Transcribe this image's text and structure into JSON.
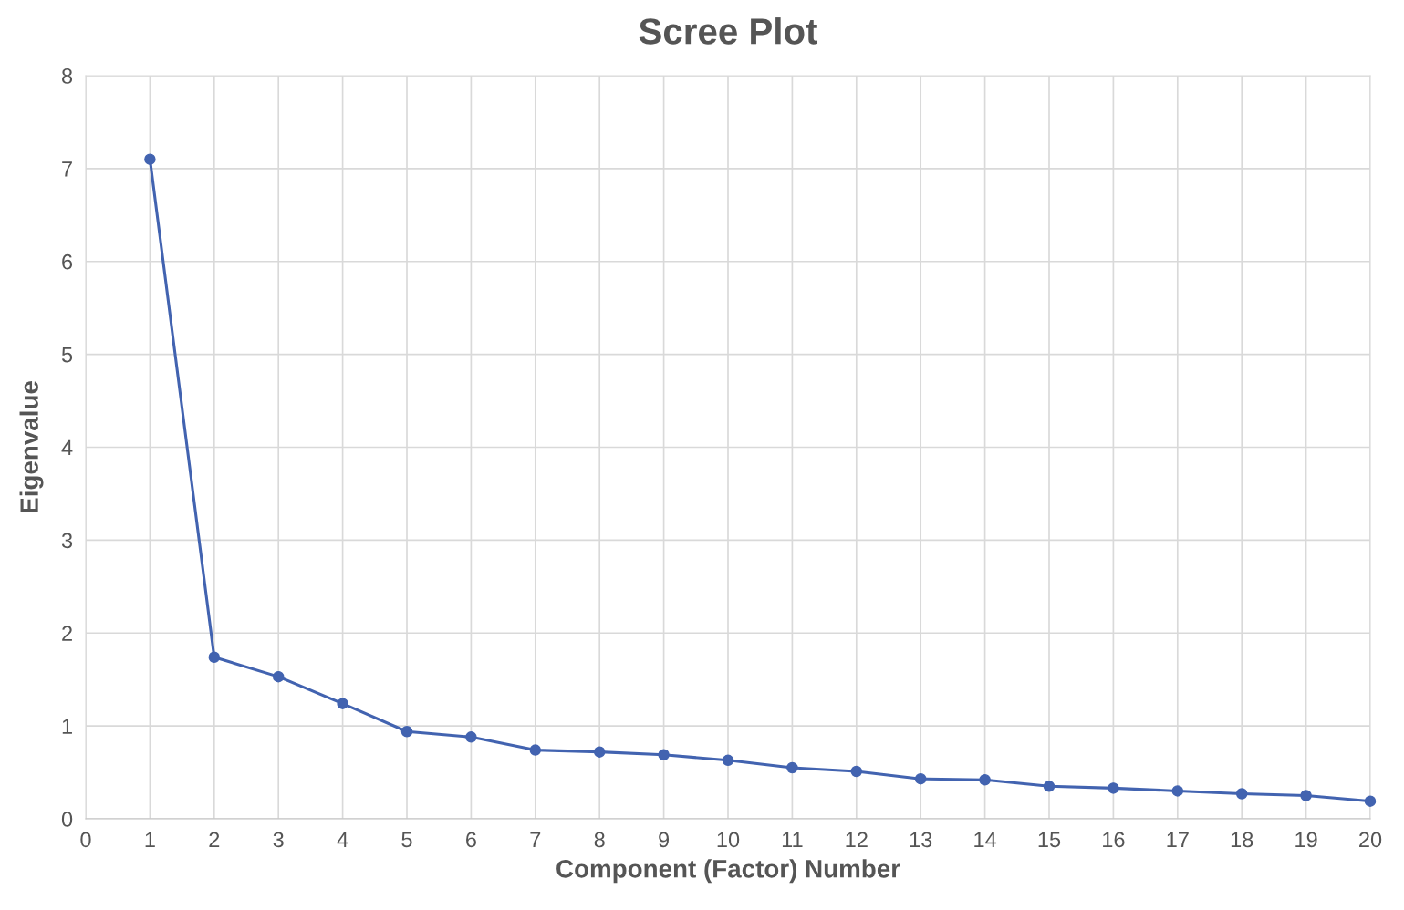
{
  "chart_data": {
    "type": "line",
    "title": "Scree Plot",
    "xlabel": "Component (Factor) Number",
    "ylabel": "Eigenvalue",
    "x": [
      1,
      2,
      3,
      4,
      5,
      6,
      7,
      8,
      9,
      10,
      11,
      12,
      13,
      14,
      15,
      16,
      17,
      18,
      19,
      20
    ],
    "series": [
      {
        "color": "#4263b0",
        "values": [
          7.1,
          1.74,
          1.53,
          1.24,
          0.94,
          0.88,
          0.74,
          0.72,
          0.69,
          0.63,
          0.55,
          0.51,
          0.43,
          0.42,
          0.35,
          0.33,
          0.3,
          0.27,
          0.25,
          0.19
        ]
      }
    ],
    "xlim": [
      0,
      20
    ],
    "xticks": [
      0,
      1,
      2,
      3,
      4,
      5,
      6,
      7,
      8,
      9,
      10,
      11,
      12,
      13,
      14,
      15,
      16,
      17,
      18,
      19,
      20
    ],
    "ylim": [
      0,
      8
    ],
    "yticks": [
      0,
      1,
      2,
      3,
      4,
      5,
      6,
      7,
      8
    ],
    "grid": true,
    "marker": "circle",
    "line_style": "solid"
  }
}
